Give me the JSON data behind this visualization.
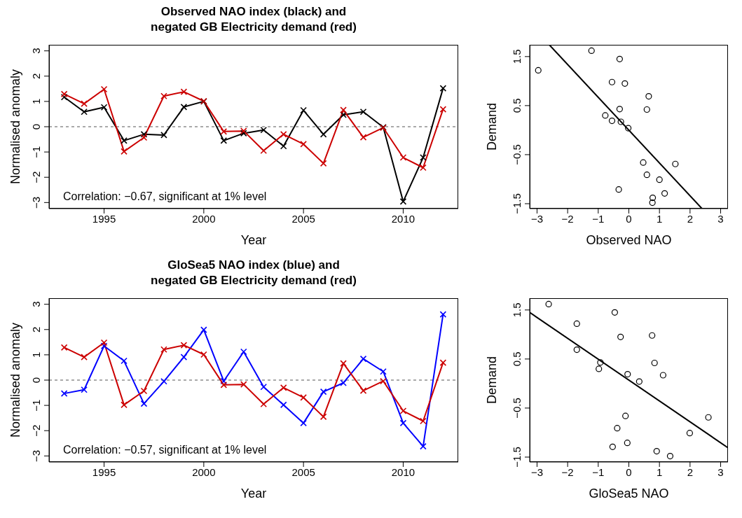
{
  "chart_data": [
    {
      "type": "line",
      "title": "Observed NAO index (black) and\nnegated GB Electricity demand (red)",
      "xlabel": "Year",
      "ylabel": "Normalised anomaly",
      "marker": "cross",
      "x": [
        1993,
        1994,
        1995,
        1996,
        1997,
        1998,
        1999,
        2000,
        2001,
        2002,
        2003,
        2004,
        2005,
        2006,
        2007,
        2008,
        2009,
        2010,
        2011,
        2012
      ],
      "series": [
        {
          "color": "#000000",
          "values": [
            1.17,
            0.59,
            0.77,
            -0.55,
            -0.3,
            -0.33,
            0.78,
            1.0,
            -0.55,
            -0.26,
            -0.13,
            -0.77,
            0.65,
            -0.3,
            0.47,
            0.59,
            -0.02,
            -2.96,
            -1.22,
            1.52
          ]
        },
        {
          "color": "#cc0000",
          "values": [
            1.29,
            0.91,
            1.48,
            -0.98,
            -0.43,
            1.21,
            1.38,
            1.01,
            -0.19,
            -0.17,
            -0.95,
            -0.3,
            -0.69,
            -1.45,
            0.66,
            -0.42,
            -0.04,
            -1.22,
            -1.62,
            0.69
          ]
        }
      ],
      "xlim": [
        1992.24,
        2012.76
      ],
      "xticks": [
        1995,
        2000,
        2005,
        2010
      ],
      "ylim": [
        -3.24,
        3.24
      ],
      "yticks": [
        -3,
        -2,
        -1,
        0,
        1,
        2,
        3
      ],
      "ref_lines": [
        {
          "axis": "y",
          "value": 0,
          "line_style": "dashed",
          "color": "#555555"
        }
      ],
      "annotations": [
        "Correlation: −0.67, significant at 1% level"
      ]
    },
    {
      "type": "scatter",
      "xlabel": "Observed NAO",
      "ylabel": "Demand",
      "series": [
        {
          "type": "scatter",
          "marker": "circle",
          "color": "#000000",
          "x": [
            1.17,
            0.59,
            0.77,
            -0.55,
            -0.3,
            -0.33,
            0.78,
            1.0,
            -0.55,
            -0.26,
            -0.13,
            -0.77,
            0.65,
            -0.3,
            0.47,
            0.59,
            -0.02,
            -2.96,
            -1.22,
            1.52
          ],
          "values": [
            -1.29,
            -0.91,
            -1.48,
            0.98,
            0.43,
            -1.21,
            -1.38,
            -1.01,
            0.19,
            0.17,
            0.95,
            0.3,
            0.69,
            1.45,
            -0.66,
            0.42,
            0.04,
            1.22,
            1.62,
            -0.69
          ]
        },
        {
          "type": "line",
          "marker": "none",
          "color": "#000000",
          "x": [
            -2.6,
            2.39
          ],
          "values": [
            1.74,
            -1.6
          ]
        }
      ],
      "xlim": [
        -3.24,
        3.24
      ],
      "xticks": [
        -3,
        -2,
        -1,
        0,
        1,
        2,
        3
      ],
      "ylim": [
        -1.6,
        1.74
      ],
      "yticks": [
        -1.5,
        -0.5,
        0.5,
        1.5
      ]
    },
    {
      "type": "line",
      "title": "GloSea5 NAO index (blue) and\nnegated GB Electricity demand (red)",
      "xlabel": "Year",
      "ylabel": "Normalised anomaly",
      "marker": "cross",
      "x": [
        1993,
        1994,
        1995,
        1996,
        1997,
        1998,
        1999,
        2000,
        2001,
        2002,
        2003,
        2004,
        2005,
        2006,
        2007,
        2008,
        2009,
        2010,
        2011,
        2012
      ],
      "series": [
        {
          "color": "#0000ff",
          "values": [
            -0.53,
            -0.38,
            1.35,
            0.76,
            -0.93,
            -0.05,
            0.91,
            1.99,
            -0.04,
            1.12,
            -0.27,
            -0.98,
            -1.7,
            -0.46,
            -0.11,
            0.84,
            0.34,
            -1.7,
            -2.62,
            2.6
          ]
        },
        {
          "color": "#cc0000",
          "values": [
            1.29,
            0.91,
            1.48,
            -0.98,
            -0.43,
            1.21,
            1.38,
            1.01,
            -0.19,
            -0.17,
            -0.95,
            -0.3,
            -0.69,
            -1.45,
            0.66,
            -0.42,
            -0.04,
            -1.22,
            -1.62,
            0.69
          ]
        }
      ],
      "xlim": [
        1992.24,
        2012.76
      ],
      "xticks": [
        1995,
        2000,
        2005,
        2010
      ],
      "ylim": [
        -3.24,
        3.24
      ],
      "yticks": [
        -3,
        -2,
        -1,
        0,
        1,
        2,
        3
      ],
      "ref_lines": [
        {
          "axis": "y",
          "value": 0,
          "line_style": "dashed",
          "color": "#555555"
        }
      ],
      "annotations": [
        "Correlation: −0.57, significant at 1% level"
      ]
    },
    {
      "type": "scatter",
      "xlabel": "GloSea5 NAO",
      "ylabel": "Demand",
      "series": [
        {
          "type": "scatter",
          "marker": "circle",
          "color": "#000000",
          "x": [
            -0.53,
            -0.38,
            1.35,
            0.76,
            -0.93,
            -0.05,
            0.91,
            1.99,
            -0.04,
            1.12,
            -0.27,
            -0.98,
            -1.7,
            -0.46,
            -0.11,
            0.84,
            0.34,
            -1.7,
            -2.62,
            2.6
          ],
          "values": [
            -1.29,
            -0.91,
            -1.48,
            0.98,
            0.43,
            -1.21,
            -1.38,
            -1.01,
            0.19,
            0.17,
            0.95,
            0.3,
            0.69,
            1.45,
            -0.66,
            0.42,
            0.04,
            1.22,
            1.62,
            -0.69
          ]
        },
        {
          "type": "line",
          "marker": "none",
          "color": "#000000",
          "x": [
            -3.24,
            3.24
          ],
          "values": [
            1.45,
            -1.31
          ]
        }
      ],
      "xlim": [
        -3.24,
        3.24
      ],
      "xticks": [
        -3,
        -2,
        -1,
        0,
        1,
        2,
        3
      ],
      "ylim": [
        -1.6,
        1.74
      ],
      "yticks": [
        -1.5,
        -0.5,
        0.5,
        1.5
      ]
    }
  ]
}
